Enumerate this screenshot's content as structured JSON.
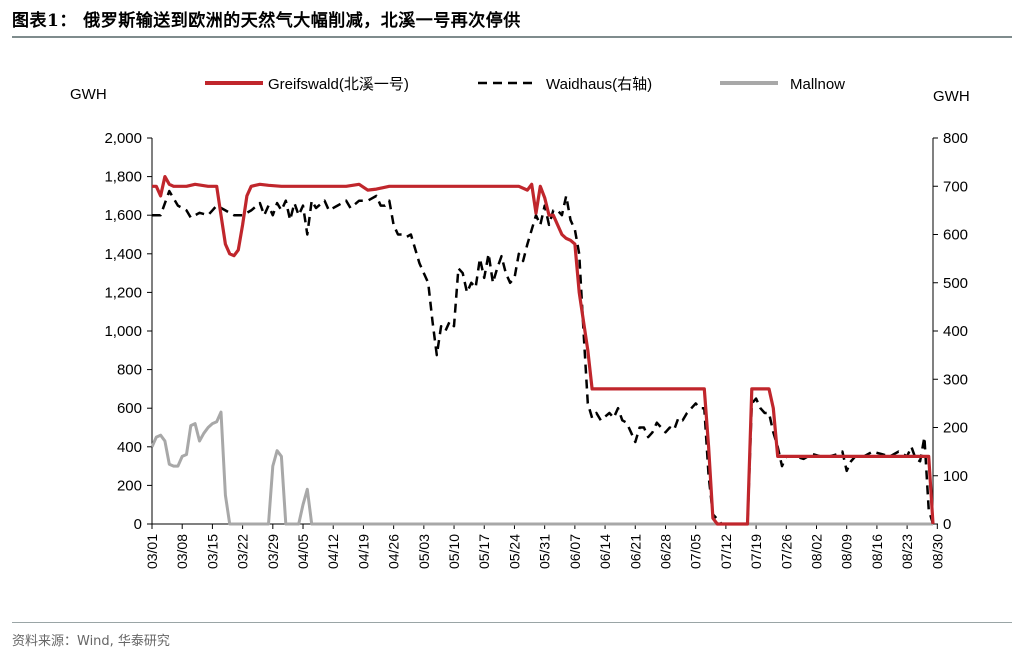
{
  "header": {
    "title": "图表1：  俄罗斯输送到欧洲的天然气大幅削减，北溪一号再次停供"
  },
  "footer": {
    "source": "资料来源：Wind, 华泰研究"
  },
  "chart_data": {
    "type": "line",
    "left_unit": "GWH",
    "right_unit": "GWH",
    "ylim_left": [
      0,
      2000
    ],
    "ylim_right": [
      0,
      800
    ],
    "y_ticks_left": [
      "0",
      "200",
      "400",
      "600",
      "800",
      "1,000",
      "1,200",
      "1,400",
      "1,600",
      "1,800",
      "2,000"
    ],
    "y_ticks_right": [
      "0",
      "100",
      "200",
      "300",
      "400",
      "500",
      "600",
      "700",
      "800"
    ],
    "x_ticks": [
      "03/01",
      "03/08",
      "03/15",
      "03/22",
      "03/29",
      "04/05",
      "04/12",
      "04/19",
      "04/26",
      "05/03",
      "05/10",
      "05/17",
      "05/24",
      "05/31",
      "06/07",
      "06/14",
      "06/21",
      "06/28",
      "07/05",
      "07/12",
      "07/19",
      "07/26",
      "08/02",
      "08/09",
      "08/16",
      "08/23",
      "08/30"
    ],
    "grid": false,
    "legend_position": "top",
    "series": [
      {
        "name": "Greifswald(北溪一号)",
        "axis": "left",
        "color": "#c0262c",
        "style": "solid",
        "points": [
          [
            0,
            1750
          ],
          [
            1,
            1750
          ],
          [
            2,
            1700
          ],
          [
            3,
            1800
          ],
          [
            4,
            1760
          ],
          [
            5,
            1750
          ],
          [
            8,
            1750
          ],
          [
            10,
            1760
          ],
          [
            13,
            1750
          ],
          [
            15,
            1750
          ],
          [
            16,
            1600
          ],
          [
            17,
            1450
          ],
          [
            18,
            1400
          ],
          [
            19,
            1390
          ],
          [
            20,
            1420
          ],
          [
            21,
            1550
          ],
          [
            22,
            1700
          ],
          [
            23,
            1750
          ],
          [
            25,
            1760
          ],
          [
            27,
            1755
          ],
          [
            30,
            1750
          ],
          [
            35,
            1750
          ],
          [
            40,
            1750
          ],
          [
            45,
            1750
          ],
          [
            48,
            1760
          ],
          [
            50,
            1730
          ],
          [
            52,
            1735
          ],
          [
            55,
            1750
          ],
          [
            60,
            1750
          ],
          [
            70,
            1750
          ],
          [
            80,
            1750
          ],
          [
            85,
            1750
          ],
          [
            87,
            1730
          ],
          [
            88,
            1760
          ],
          [
            89,
            1610
          ],
          [
            90,
            1750
          ],
          [
            91,
            1690
          ],
          [
            92,
            1600
          ],
          [
            93,
            1600
          ],
          [
            94,
            1550
          ],
          [
            95,
            1500
          ],
          [
            96,
            1480
          ],
          [
            97,
            1470
          ],
          [
            98,
            1450
          ],
          [
            99,
            1200
          ],
          [
            100,
            1050
          ],
          [
            101,
            900
          ],
          [
            102,
            700
          ],
          [
            110,
            700
          ],
          [
            120,
            700
          ],
          [
            128,
            700
          ],
          [
            129,
            400
          ],
          [
            130,
            30
          ],
          [
            131,
            0
          ],
          [
            138,
            0
          ],
          [
            139,
            700
          ],
          [
            143,
            700
          ],
          [
            144,
            600
          ],
          [
            145,
            350
          ],
          [
            150,
            350
          ],
          [
            160,
            350
          ],
          [
            170,
            350
          ],
          [
            180,
            350
          ],
          [
            181,
            0
          ]
        ]
      },
      {
        "name": "Waidhaus(右轴)",
        "axis": "right",
        "color": "#000000",
        "style": "dashed",
        "points": [
          [
            0,
            640
          ],
          [
            2,
            640
          ],
          [
            4,
            690
          ],
          [
            6,
            660
          ],
          [
            8,
            650
          ],
          [
            9,
            635
          ],
          [
            11,
            645
          ],
          [
            13,
            640
          ],
          [
            14,
            650
          ],
          [
            15,
            660
          ],
          [
            17,
            650
          ],
          [
            19,
            640
          ],
          [
            21,
            640
          ],
          [
            23,
            650
          ],
          [
            25,
            665
          ],
          [
            26,
            640
          ],
          [
            27,
            660
          ],
          [
            28,
            640
          ],
          [
            29,
            665
          ],
          [
            30,
            650
          ],
          [
            31,
            670
          ],
          [
            32,
            630
          ],
          [
            33,
            665
          ],
          [
            34,
            640
          ],
          [
            35,
            660
          ],
          [
            36,
            600
          ],
          [
            37,
            670
          ],
          [
            38,
            655
          ],
          [
            40,
            670
          ],
          [
            41,
            650
          ],
          [
            43,
            660
          ],
          [
            45,
            670
          ],
          [
            46,
            655
          ],
          [
            48,
            670
          ],
          [
            50,
            670
          ],
          [
            52,
            680
          ],
          [
            53,
            660
          ],
          [
            54,
            660
          ],
          [
            55,
            670
          ],
          [
            56,
            620
          ],
          [
            57,
            600
          ],
          [
            58,
            600
          ],
          [
            59,
            595
          ],
          [
            60,
            600
          ],
          [
            61,
            570
          ],
          [
            62,
            540
          ],
          [
            63,
            520
          ],
          [
            64,
            500
          ],
          [
            65,
            420
          ],
          [
            66,
            350
          ],
          [
            67,
            410
          ],
          [
            68,
            400
          ],
          [
            69,
            420
          ],
          [
            70,
            410
          ],
          [
            71,
            530
          ],
          [
            72,
            520
          ],
          [
            73,
            480
          ],
          [
            74,
            500
          ],
          [
            75,
            490
          ],
          [
            76,
            550
          ],
          [
            77,
            510
          ],
          [
            78,
            560
          ],
          [
            79,
            500
          ],
          [
            80,
            530
          ],
          [
            81,
            555
          ],
          [
            82,
            520
          ],
          [
            83,
            500
          ],
          [
            84,
            510
          ],
          [
            85,
            560
          ],
          [
            86,
            545
          ],
          [
            87,
            580
          ],
          [
            88,
            610
          ],
          [
            89,
            640
          ],
          [
            90,
            620
          ],
          [
            91,
            660
          ],
          [
            92,
            620
          ],
          [
            93,
            650
          ],
          [
            94,
            650
          ],
          [
            95,
            640
          ],
          [
            96,
            680
          ],
          [
            97,
            630
          ],
          [
            98,
            610
          ],
          [
            99,
            560
          ],
          [
            100,
            400
          ],
          [
            101,
            250
          ],
          [
            102,
            220
          ],
          [
            103,
            230
          ],
          [
            104,
            215
          ],
          [
            106,
            230
          ],
          [
            107,
            220
          ],
          [
            108,
            240
          ],
          [
            109,
            215
          ],
          [
            110,
            210
          ],
          [
            111,
            190
          ],
          [
            112,
            170
          ],
          [
            113,
            200
          ],
          [
            114,
            200
          ],
          [
            115,
            180
          ],
          [
            116,
            190
          ],
          [
            117,
            210
          ],
          [
            118,
            200
          ],
          [
            119,
            190
          ],
          [
            120,
            200
          ],
          [
            121,
            195
          ],
          [
            122,
            220
          ],
          [
            123,
            215
          ],
          [
            124,
            230
          ],
          [
            125,
            240
          ],
          [
            126,
            250
          ],
          [
            127,
            240
          ],
          [
            128,
            240
          ],
          [
            129,
            100
          ],
          [
            130,
            20
          ],
          [
            131,
            10
          ],
          [
            132,
            0
          ],
          [
            138,
            0
          ],
          [
            139,
            250
          ],
          [
            140,
            260
          ],
          [
            141,
            240
          ],
          [
            142,
            230
          ],
          [
            143,
            230
          ],
          [
            144,
            190
          ],
          [
            145,
            160
          ],
          [
            146,
            120
          ],
          [
            147,
            140
          ],
          [
            149,
            140
          ],
          [
            151,
            135
          ],
          [
            153,
            145
          ],
          [
            155,
            140
          ],
          [
            157,
            140
          ],
          [
            159,
            145
          ],
          [
            160,
            150
          ],
          [
            161,
            110
          ],
          [
            162,
            130
          ],
          [
            163,
            140
          ],
          [
            165,
            140
          ],
          [
            167,
            150
          ],
          [
            169,
            145
          ],
          [
            171,
            140
          ],
          [
            173,
            150
          ],
          [
            175,
            140
          ],
          [
            176,
            160
          ],
          [
            177,
            135
          ],
          [
            178,
            130
          ],
          [
            179,
            180
          ],
          [
            180,
            30
          ],
          [
            181,
            0
          ]
        ]
      },
      {
        "name": "Mallnow",
        "axis": "left",
        "color": "#a8a8a8",
        "style": "solid",
        "points": [
          [
            0,
            400
          ],
          [
            1,
            450
          ],
          [
            2,
            460
          ],
          [
            3,
            430
          ],
          [
            4,
            310
          ],
          [
            5,
            300
          ],
          [
            6,
            300
          ],
          [
            7,
            350
          ],
          [
            8,
            360
          ],
          [
            9,
            510
          ],
          [
            10,
            520
          ],
          [
            11,
            430
          ],
          [
            12,
            470
          ],
          [
            13,
            500
          ],
          [
            14,
            520
          ],
          [
            15,
            530
          ],
          [
            16,
            580
          ],
          [
            17,
            150
          ],
          [
            18,
            0
          ],
          [
            27,
            0
          ],
          [
            28,
            300
          ],
          [
            29,
            380
          ],
          [
            30,
            350
          ],
          [
            31,
            0
          ],
          [
            34,
            0
          ],
          [
            35,
            100
          ],
          [
            36,
            180
          ],
          [
            37,
            0
          ],
          [
            40,
            0
          ],
          [
            60,
            0
          ],
          [
            80,
            0
          ],
          [
            100,
            0
          ],
          [
            120,
            0
          ],
          [
            150,
            0
          ],
          [
            181,
            0
          ]
        ]
      }
    ]
  }
}
